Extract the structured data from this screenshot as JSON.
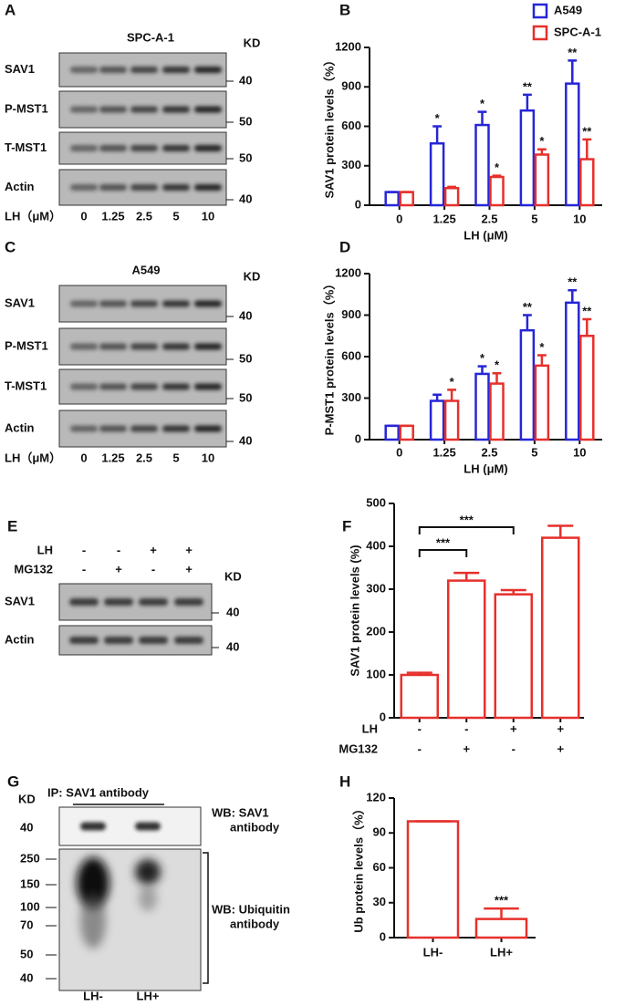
{
  "panel_letters": [
    "A",
    "B",
    "C",
    "D",
    "E",
    "F",
    "G",
    "H"
  ],
  "blot_A": {
    "title": "SPC-A-1",
    "kd_label": "KD",
    "rows": [
      {
        "label": "SAV1",
        "kd": "40"
      },
      {
        "label": "P-MST1",
        "kd": "50"
      },
      {
        "label": "T-MST1",
        "kd": "50"
      },
      {
        "label": "Actin",
        "kd": "40"
      }
    ],
    "lane_axis_label": "LH（μM）",
    "lanes": [
      "0",
      "1.25",
      "2.5",
      "5",
      "10"
    ]
  },
  "blot_C": {
    "title": "A549",
    "kd_label": "KD",
    "rows": [
      {
        "label": "SAV1",
        "kd": "40"
      },
      {
        "label": "P-MST1",
        "kd": "50"
      },
      {
        "label": "T-MST1",
        "kd": "50"
      },
      {
        "label": "Actin",
        "kd": "40"
      }
    ],
    "lane_axis_label": "LH（μM）",
    "lanes": [
      "0",
      "1.25",
      "2.5",
      "5",
      "10"
    ]
  },
  "blot_E": {
    "kd_label": "KD",
    "treatments": [
      {
        "label": "LH",
        "signs": [
          "-",
          "-",
          "+",
          "+"
        ]
      },
      {
        "label": "MG132",
        "signs": [
          "-",
          "+",
          "-",
          "+"
        ]
      }
    ],
    "rows": [
      {
        "label": "SAV1",
        "kd": "40"
      },
      {
        "label": "Actin",
        "kd": "40"
      }
    ]
  },
  "blot_G": {
    "kd_label": "KD",
    "ip_label": "IP: SAV1 antibody",
    "top_markers": [
      "40"
    ],
    "bottom_markers": [
      "250",
      "150",
      "100",
      "70",
      "50",
      "40"
    ],
    "wb_top": [
      "WB: SAV1",
      "antibody"
    ],
    "wb_bottom": [
      "WB: Ubiquitin",
      "antibody"
    ],
    "lanes": [
      "LH-",
      "LH+"
    ]
  },
  "chart_data": [
    {
      "type": "bar",
      "y_label": "SAV1 protein levels（%）",
      "x_label": "LH (μM)",
      "categories": [
        "0",
        "1.25",
        "2.5",
        "5",
        "10"
      ],
      "series": [
        {
          "name": "A549",
          "color": "#2626d6",
          "values": [
            100,
            470,
            610,
            720,
            925
          ],
          "errors": [
            0,
            130,
            100,
            120,
            175
          ],
          "stars": [
            null,
            "*",
            "*",
            "**",
            "**"
          ]
        },
        {
          "name": "SPC-A-1",
          "color": "#e6302b",
          "values": [
            100,
            130,
            215,
            385,
            350
          ],
          "errors": [
            0,
            10,
            10,
            40,
            150
          ],
          "stars": [
            null,
            null,
            "*",
            "*",
            "**"
          ]
        }
      ],
      "ylim": [
        0,
        1200
      ],
      "yticks": [
        0,
        300,
        600,
        900,
        1200
      ],
      "legend": "upper right"
    },
    {
      "type": "bar",
      "y_label": "P-MST1 protein levels（%）",
      "x_label": "LH (μM)",
      "categories": [
        "0",
        "1.25",
        "2.5",
        "5",
        "10"
      ],
      "series": [
        {
          "color": "#2626d6",
          "values": [
            100,
            280,
            475,
            790,
            990
          ],
          "errors": [
            0,
            45,
            55,
            110,
            90
          ],
          "stars": [
            null,
            null,
            "*",
            "**",
            "**"
          ]
        },
        {
          "color": "#e6302b",
          "values": [
            100,
            280,
            405,
            535,
            750
          ],
          "errors": [
            0,
            80,
            75,
            75,
            120
          ],
          "stars": [
            null,
            "*",
            "*",
            "*",
            "**"
          ]
        }
      ],
      "ylim": [
        0,
        1200
      ],
      "yticks": [
        0,
        300,
        600,
        900,
        1200
      ]
    },
    {
      "type": "bar",
      "y_label": "SAV1 protein levels (%)",
      "categories": [
        null,
        null,
        null,
        null
      ],
      "condition_rows": [
        {
          "label": "LH",
          "signs": [
            "-",
            "-",
            "+",
            "+"
          ]
        },
        {
          "label": "MG132",
          "signs": [
            "-",
            "+",
            "-",
            "+"
          ]
        }
      ],
      "values": [
        100,
        320,
        288,
        420
      ],
      "errors": [
        5,
        18,
        10,
        28
      ],
      "color": "#e6302b",
      "comparisons": [
        {
          "between": [
            0,
            1
          ],
          "label": "***"
        },
        {
          "between": [
            0,
            2
          ],
          "label": "***"
        }
      ],
      "ylim": [
        0,
        500
      ],
      "yticks": [
        0,
        100,
        200,
        300,
        400,
        500
      ]
    },
    {
      "type": "bar",
      "y_label": "Ub protein levels（%）",
      "categories": [
        "LH-",
        "LH+"
      ],
      "values": [
        100,
        16
      ],
      "errors": [
        0,
        9
      ],
      "stars": [
        null,
        "***"
      ],
      "color": "#e6302b",
      "ylim": [
        0,
        120
      ],
      "yticks": [
        0,
        30,
        60,
        90,
        120
      ]
    }
  ]
}
